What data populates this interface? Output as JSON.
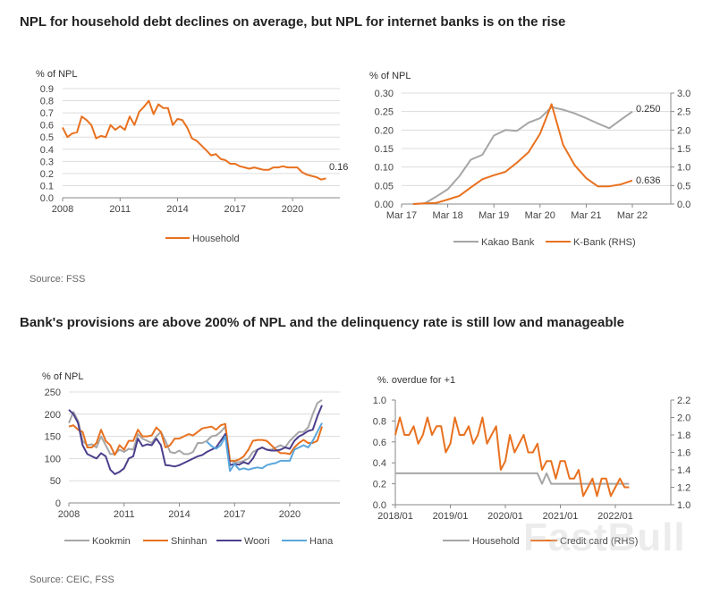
{
  "sections": [
    {
      "title": "NPL for household debt declines on average, but NPL for internet banks is on the rise",
      "source": "Source: FSS"
    },
    {
      "title": "Bank's provisions are above 200% of NPL and the delinquency rate is still low and manageable",
      "source": "Source: CEIC, FSS"
    }
  ],
  "watermark": "FastBull",
  "chart_data": [
    {
      "type": "line",
      "ylabel": "% of NPL",
      "ylim": [
        0,
        0.9
      ],
      "yticks": [
        "0.0",
        "0.1",
        "0.2",
        "0.3",
        "0.4",
        "0.5",
        "0.6",
        "0.7",
        "0.8",
        "0.9"
      ],
      "xticks": [
        "2008",
        "2011",
        "2014",
        "2017",
        "2020"
      ],
      "grid": true,
      "legend_position": "bottom",
      "annotations": [
        "0.16"
      ],
      "x": [
        "2008Q1",
        "2008Q2",
        "2008Q3",
        "2008Q4",
        "2009Q1",
        "2009Q2",
        "2009Q3",
        "2009Q4",
        "2010Q1",
        "2010Q2",
        "2010Q3",
        "2010Q4",
        "2011Q1",
        "2011Q2",
        "2011Q3",
        "2011Q4",
        "2012Q1",
        "2012Q2",
        "2012Q3",
        "2012Q4",
        "2013Q1",
        "2013Q2",
        "2013Q3",
        "2013Q4",
        "2014Q1",
        "2014Q2",
        "2014Q3",
        "2014Q4",
        "2015Q1",
        "2015Q2",
        "2015Q3",
        "2015Q4",
        "2016Q1",
        "2016Q2",
        "2016Q3",
        "2016Q4",
        "2017Q1",
        "2017Q2",
        "2017Q3",
        "2017Q4",
        "2018Q1",
        "2018Q2",
        "2018Q3",
        "2018Q4",
        "2019Q1",
        "2019Q2",
        "2019Q3",
        "2019Q4",
        "2020Q1",
        "2020Q2",
        "2020Q3",
        "2020Q4",
        "2021Q1",
        "2021Q2",
        "2021Q3",
        "2021Q4"
      ],
      "series": [
        {
          "name": "Household",
          "color": "#E8711F",
          "axis": "left",
          "values": [
            0.58,
            0.5,
            0.53,
            0.54,
            0.67,
            0.64,
            0.6,
            0.49,
            0.51,
            0.5,
            0.6,
            0.56,
            0.59,
            0.56,
            0.67,
            0.6,
            0.71,
            0.75,
            0.8,
            0.69,
            0.77,
            0.74,
            0.74,
            0.6,
            0.65,
            0.64,
            0.58,
            0.49,
            0.47,
            0.43,
            0.39,
            0.35,
            0.36,
            0.32,
            0.31,
            0.28,
            0.28,
            0.26,
            0.25,
            0.24,
            0.25,
            0.24,
            0.23,
            0.23,
            0.25,
            0.25,
            0.26,
            0.25,
            0.25,
            0.25,
            0.21,
            0.19,
            0.18,
            0.17,
            0.15,
            0.16
          ]
        }
      ]
    },
    {
      "type": "line",
      "ylabel": "% of NPL",
      "ylim": [
        0,
        0.3
      ],
      "y2lim": [
        0,
        3.0
      ],
      "yticks": [
        "0.00",
        "0.05",
        "0.10",
        "0.15",
        "0.20",
        "0.25",
        "0.30"
      ],
      "y2ticks": [
        "0.0",
        "0.5",
        "1.0",
        "1.5",
        "2.0",
        "2.5",
        "3.0"
      ],
      "xticks": [
        "Mar 17",
        "Mar 18",
        "Mar 19",
        "Mar 20",
        "Mar 21",
        "Mar 22"
      ],
      "grid": true,
      "legend_position": "bottom",
      "annotations": [
        "0.250",
        "0.636"
      ],
      "x": [
        "Jun 17",
        "Sep 17",
        "Dec 17",
        "Mar 18",
        "Jun 18",
        "Sep 18",
        "Dec 18",
        "Mar 19",
        "Jun 19",
        "Sep 19",
        "Dec 19",
        "Mar 20",
        "Jun 20",
        "Sep 20",
        "Dec 20",
        "Mar 21",
        "Jun 21",
        "Sep 21",
        "Dec 21",
        "Mar 22"
      ],
      "series": [
        {
          "name": "Kakao Bank",
          "color": "#A6A6A6",
          "axis": "left",
          "values": [
            0,
            0.002,
            0.02,
            0.04,
            0.075,
            0.12,
            0.133,
            0.185,
            0.2,
            0.198,
            0.22,
            0.232,
            0.262,
            0.255,
            0.245,
            0.232,
            0.218,
            0.205,
            0.228,
            0.25
          ]
        },
        {
          "name": "K-Bank (RHS)",
          "color": "#E8711F",
          "axis": "right",
          "values": [
            0,
            0.02,
            0.03,
            0.12,
            0.22,
            0.45,
            0.67,
            0.78,
            0.87,
            1.12,
            1.4,
            1.9,
            2.7,
            1.6,
            1.05,
            0.7,
            0.48,
            0.48,
            0.53,
            0.636
          ]
        }
      ]
    },
    {
      "type": "line",
      "ylabel": "% of NPL",
      "ylim": [
        0,
        250
      ],
      "yticks": [
        "0",
        "50",
        "100",
        "150",
        "200",
        "250"
      ],
      "xticks": [
        "2008",
        "2011",
        "2014",
        "2017",
        "2020"
      ],
      "grid": true,
      "legend_position": "bottom",
      "x": [
        "2008Q1",
        "2008Q2",
        "2008Q3",
        "2008Q4",
        "2009Q1",
        "2009Q2",
        "2009Q3",
        "2009Q4",
        "2010Q1",
        "2010Q2",
        "2010Q3",
        "2010Q4",
        "2011Q1",
        "2011Q2",
        "2011Q3",
        "2011Q4",
        "2012Q1",
        "2012Q2",
        "2012Q3",
        "2012Q4",
        "2013Q1",
        "2013Q2",
        "2013Q3",
        "2013Q4",
        "2014Q1",
        "2014Q2",
        "2014Q3",
        "2014Q4",
        "2015Q1",
        "2015Q2",
        "2015Q3",
        "2015Q4",
        "2016Q1",
        "2016Q2",
        "2016Q3",
        "2016Q4",
        "2017Q1",
        "2017Q2",
        "2017Q3",
        "2017Q4",
        "2018Q1",
        "2018Q2",
        "2018Q3",
        "2018Q4",
        "2019Q1",
        "2019Q2",
        "2019Q3",
        "2019Q4",
        "2020Q1",
        "2020Q2",
        "2020Q3",
        "2020Q4",
        "2021Q1",
        "2021Q2",
        "2021Q3",
        "2021Q4"
      ],
      "series": [
        {
          "name": "Kookmin",
          "color": "#A6A6A6",
          "axis": "left",
          "values": [
            180,
            205,
            185,
            140,
            130,
            132,
            125,
            150,
            130,
            110,
            110,
            120,
            115,
            122,
            120,
            155,
            145,
            140,
            135,
            150,
            160,
            140,
            115,
            112,
            118,
            110,
            110,
            115,
            135,
            135,
            140,
            150,
            152,
            160,
            172,
            95,
            92,
            92,
            95,
            100,
            115,
            120,
            125,
            120,
            120,
            125,
            130,
            125,
            140,
            150,
            160,
            160,
            170,
            200,
            225,
            232
          ]
        },
        {
          "name": "Shinhan",
          "color": "#E8711F",
          "axis": "left",
          "values": [
            172,
            175,
            165,
            160,
            125,
            125,
            135,
            165,
            140,
            130,
            108,
            130,
            120,
            140,
            140,
            165,
            150,
            150,
            152,
            170,
            160,
            125,
            130,
            145,
            145,
            150,
            155,
            152,
            160,
            168,
            170,
            172,
            165,
            175,
            178,
            95,
            95,
            98,
            105,
            120,
            140,
            142,
            142,
            140,
            130,
            120,
            112,
            112,
            110,
            125,
            135,
            142,
            135,
            135,
            140,
            172
          ]
        },
        {
          "name": "Woori",
          "color": "#4B3F8C",
          "axis": "left",
          "values": [
            210,
            200,
            180,
            130,
            110,
            105,
            100,
            112,
            105,
            75,
            65,
            70,
            78,
            100,
            105,
            145,
            128,
            132,
            130,
            145,
            130,
            85,
            84,
            82,
            85,
            90,
            95,
            100,
            105,
            108,
            115,
            120,
            125,
            140,
            155,
            85,
            88,
            86,
            92,
            88,
            100,
            120,
            125,
            120,
            118,
            118,
            120,
            125,
            122,
            140,
            150,
            155,
            162,
            165,
            195,
            220
          ]
        },
        {
          "name": "Hana",
          "color": "#5AA6DC",
          "axis": "left",
          "values": [
            null,
            null,
            null,
            null,
            null,
            null,
            null,
            null,
            null,
            null,
            null,
            null,
            null,
            null,
            null,
            null,
            null,
            null,
            null,
            null,
            null,
            null,
            null,
            null,
            null,
            null,
            null,
            null,
            null,
            null,
            138,
            128,
            122,
            130,
            150,
            72,
            88,
            75,
            78,
            75,
            78,
            80,
            78,
            85,
            88,
            90,
            95,
            95,
            95,
            120,
            125,
            130,
            125,
            140,
            160,
            180
          ]
        }
      ]
    },
    {
      "type": "line",
      "ylabel": "%. overdue for +1",
      "ylim": [
        0,
        1.0
      ],
      "y2lim": [
        1.0,
        2.2
      ],
      "yticks": [
        "0.0",
        "0.2",
        "0.4",
        "0.6",
        "0.8",
        "1.0"
      ],
      "y2ticks": [
        "1.0",
        "1.2",
        "1.4",
        "1.6",
        "1.8",
        "2.0",
        "2.2"
      ],
      "xticks": [
        "2018/01",
        "2019/01",
        "2020/01",
        "2021/01",
        "2022/01"
      ],
      "grid": false,
      "legend_position": "bottom",
      "x": [
        "2018/01",
        "2018/02",
        "2018/03",
        "2018/04",
        "2018/05",
        "2018/06",
        "2018/07",
        "2018/08",
        "2018/09",
        "2018/10",
        "2018/11",
        "2018/12",
        "2019/01",
        "2019/02",
        "2019/03",
        "2019/04",
        "2019/05",
        "2019/06",
        "2019/07",
        "2019/08",
        "2019/09",
        "2019/10",
        "2019/11",
        "2019/12",
        "2020/01",
        "2020/02",
        "2020/03",
        "2020/04",
        "2020/05",
        "2020/06",
        "2020/07",
        "2020/08",
        "2020/09",
        "2020/10",
        "2020/11",
        "2020/12",
        "2021/01",
        "2021/02",
        "2021/03",
        "2021/04",
        "2021/05",
        "2021/06",
        "2021/07",
        "2021/08",
        "2021/09",
        "2021/10",
        "2021/11",
        "2021/12",
        "2022/01",
        "2022/02",
        "2022/03",
        "2022/04"
      ],
      "series": [
        {
          "name": "Household",
          "color": "#A6A6A6",
          "axis": "left",
          "values": [
            0.3,
            0.3,
            0.3,
            0.3,
            0.3,
            0.3,
            0.3,
            0.3,
            0.3,
            0.3,
            0.3,
            0.3,
            0.3,
            0.3,
            0.3,
            0.3,
            0.3,
            0.3,
            0.3,
            0.3,
            0.3,
            0.3,
            0.3,
            0.3,
            0.3,
            0.3,
            0.3,
            0.3,
            0.3,
            0.3,
            0.3,
            0.3,
            0.2,
            0.3,
            0.2,
            0.2,
            0.2,
            0.2,
            0.2,
            0.2,
            0.2,
            0.2,
            0.2,
            0.2,
            0.2,
            0.2,
            0.2,
            0.2,
            0.2,
            0.2,
            0.2,
            0.2
          ]
        },
        {
          "name": "Credit card (RHS)",
          "color": "#E8711F",
          "axis": "right",
          "values": [
            1.8,
            2.0,
            1.8,
            1.8,
            1.9,
            1.7,
            1.8,
            2.0,
            1.8,
            1.9,
            1.9,
            1.6,
            1.7,
            2.0,
            1.8,
            1.8,
            1.9,
            1.7,
            1.8,
            2.0,
            1.7,
            1.8,
            1.9,
            1.4,
            1.5,
            1.8,
            1.6,
            1.7,
            1.8,
            1.6,
            1.6,
            1.7,
            1.4,
            1.5,
            1.5,
            1.3,
            1.5,
            1.5,
            1.3,
            1.3,
            1.4,
            1.1,
            1.2,
            1.3,
            1.1,
            1.3,
            1.3,
            1.1,
            1.2,
            1.3,
            1.2,
            1.2
          ]
        }
      ]
    }
  ]
}
